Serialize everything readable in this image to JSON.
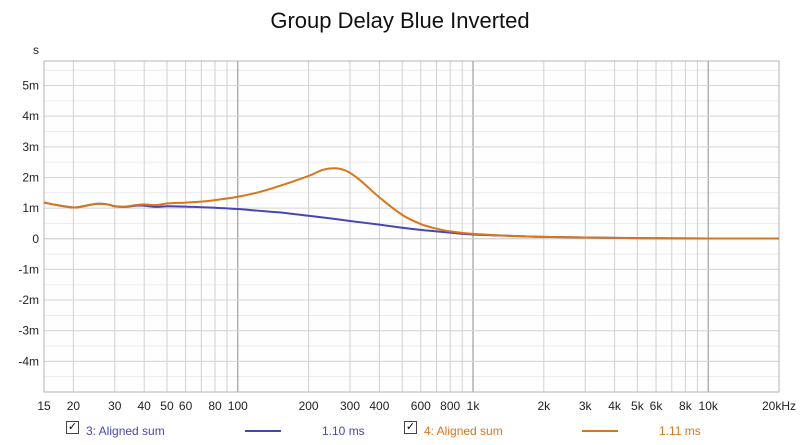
{
  "chart_data": {
    "type": "line",
    "title": "Group Delay Blue Inverted",
    "ylabel": "s",
    "xscale": "log",
    "xlim": [
      15,
      20000
    ],
    "ylim": [
      -0.005,
      0.0058
    ],
    "grid": true,
    "y_ticks": [
      {
        "value": 0.005,
        "label": "5m"
      },
      {
        "value": 0.004,
        "label": "4m"
      },
      {
        "value": 0.003,
        "label": "3m"
      },
      {
        "value": 0.002,
        "label": "2m"
      },
      {
        "value": 0.001,
        "label": "1m"
      },
      {
        "value": 0,
        "label": "0"
      },
      {
        "value": -0.001,
        "label": "-1m"
      },
      {
        "value": -0.002,
        "label": "-2m"
      },
      {
        "value": -0.003,
        "label": "-3m"
      },
      {
        "value": -0.004,
        "label": "-4m"
      }
    ],
    "x_ticks": [
      {
        "value": 15,
        "label": "15"
      },
      {
        "value": 20,
        "label": "20"
      },
      {
        "value": 30,
        "label": "30"
      },
      {
        "value": 40,
        "label": "40"
      },
      {
        "value": 50,
        "label": "50"
      },
      {
        "value": 60,
        "label": "60"
      },
      {
        "value": 80,
        "label": "80"
      },
      {
        "value": 100,
        "label": "100"
      },
      {
        "value": 200,
        "label": "200"
      },
      {
        "value": 300,
        "label": "300"
      },
      {
        "value": 400,
        "label": "400"
      },
      {
        "value": 600,
        "label": "600"
      },
      {
        "value": 800,
        "label": "800"
      },
      {
        "value": 1000,
        "label": "1k"
      },
      {
        "value": 2000,
        "label": "2k"
      },
      {
        "value": 3000,
        "label": "3k"
      },
      {
        "value": 4000,
        "label": "4k"
      },
      {
        "value": 5000,
        "label": "5k"
      },
      {
        "value": 6000,
        "label": "6k"
      },
      {
        "value": 8000,
        "label": "8k"
      },
      {
        "value": 10000,
        "label": "10k"
      },
      {
        "value": 20000,
        "label": "20kHz"
      }
    ],
    "series": [
      {
        "name": "3: Aligned sum",
        "color": "#4646b9",
        "value_label": "1.10 ms",
        "points": [
          [
            15,
            0.00118
          ],
          [
            17,
            0.0011
          ],
          [
            20,
            0.00102
          ],
          [
            22,
            0.00106
          ],
          [
            25,
            0.00114
          ],
          [
            28,
            0.00112
          ],
          [
            30,
            0.00106
          ],
          [
            33,
            0.00104
          ],
          [
            37,
            0.00108
          ],
          [
            40,
            0.00108
          ],
          [
            45,
            0.00104
          ],
          [
            50,
            0.00106
          ],
          [
            60,
            0.00105
          ],
          [
            70,
            0.00103
          ],
          [
            80,
            0.00101
          ],
          [
            100,
            0.00097
          ],
          [
            120,
            0.00092
          ],
          [
            150,
            0.00086
          ],
          [
            200,
            0.00075
          ],
          [
            250,
            0.00066
          ],
          [
            300,
            0.00058
          ],
          [
            400,
            0.00046
          ],
          [
            500,
            0.00036
          ],
          [
            600,
            0.00029
          ],
          [
            700,
            0.00024
          ],
          [
            800,
            0.0002
          ],
          [
            1000,
            0.00014
          ],
          [
            1500,
            9e-05
          ],
          [
            2000,
            6e-05
          ],
          [
            3000,
            4e-05
          ],
          [
            5000,
            2e-05
          ],
          [
            10000,
            1e-05
          ],
          [
            20000,
            1e-05
          ]
        ]
      },
      {
        "name": "4: Aligned sum",
        "color": "#d9761a",
        "value_label": "1.11 ms",
        "points": [
          [
            15,
            0.00118
          ],
          [
            17,
            0.0011
          ],
          [
            20,
            0.00102
          ],
          [
            22,
            0.00106
          ],
          [
            25,
            0.00114
          ],
          [
            28,
            0.00112
          ],
          [
            30,
            0.00106
          ],
          [
            33,
            0.00105
          ],
          [
            37,
            0.0011
          ],
          [
            40,
            0.00112
          ],
          [
            45,
            0.0011
          ],
          [
            50,
            0.00115
          ],
          [
            60,
            0.00118
          ],
          [
            70,
            0.00121
          ],
          [
            80,
            0.00126
          ],
          [
            100,
            0.00137
          ],
          [
            120,
            0.0015
          ],
          [
            150,
            0.00172
          ],
          [
            200,
            0.00205
          ],
          [
            230,
            0.00225
          ],
          [
            260,
            0.0023
          ],
          [
            290,
            0.00221
          ],
          [
            330,
            0.00192
          ],
          [
            400,
            0.00135
          ],
          [
            500,
            0.00078
          ],
          [
            600,
            0.00048
          ],
          [
            700,
            0.00033
          ],
          [
            800,
            0.00024
          ],
          [
            1000,
            0.00016
          ],
          [
            1500,
            9e-05
          ],
          [
            2000,
            6e-05
          ],
          [
            3000,
            4e-05
          ],
          [
            5000,
            2e-05
          ],
          [
            10000,
            1e-05
          ],
          [
            20000,
            1e-05
          ]
        ]
      }
    ]
  }
}
